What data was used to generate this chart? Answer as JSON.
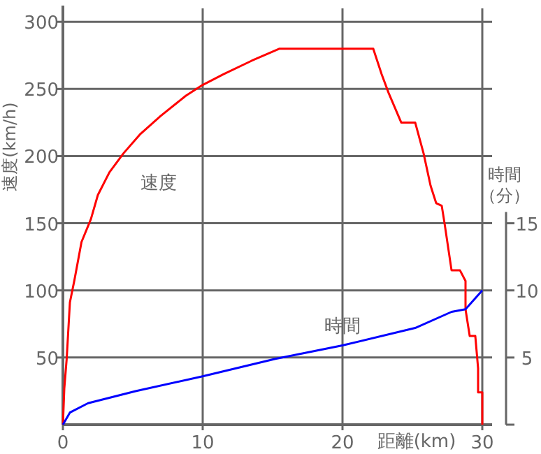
{
  "chart_data": {
    "type": "line",
    "xlabel": "距離(km)",
    "ylabel": "速度(km/h)",
    "y2label": "時間（分）",
    "xlim": [
      0,
      30.7
    ],
    "xticks": [
      0,
      10,
      20,
      30
    ],
    "ylim": [
      0,
      310
    ],
    "yticks": [
      50,
      100,
      150,
      200,
      250,
      300
    ],
    "y2lim": [
      0,
      31
    ],
    "y2ticks": [
      {
        "value": 0,
        "label": null
      },
      5,
      10,
      15
    ],
    "grid": true,
    "marker": "none",
    "line_style": "solid",
    "series": [
      {
        "name": "速度",
        "color": "#ff0000",
        "x": [
          0,
          0.1,
          0.27,
          0.5,
          0.83,
          1.33,
          2,
          2.5,
          3.33,
          4.33,
          5.5,
          7,
          8.8,
          10,
          11.5,
          13.5,
          15.5,
          22.2,
          22.8,
          23.3,
          24.2,
          25.2,
          25.8,
          26.3,
          26.7,
          27.1,
          27.3,
          27.8,
          28.4,
          28.8,
          28.8,
          29.1,
          29.5,
          29.7,
          29.7,
          30,
          30
        ],
        "values": [
          0,
          27,
          49,
          91,
          108,
          136,
          153,
          171,
          188,
          202,
          216,
          230,
          245,
          253,
          261,
          271,
          280,
          280,
          261,
          247,
          225,
          225,
          202,
          178,
          165,
          163,
          150,
          115,
          115,
          107,
          86,
          66,
          66,
          42,
          24,
          24,
          0
        ]
      },
      {
        "name": "時間",
        "color": "#0000ff",
        "axis": "y2",
        "x": [
          0,
          0.5,
          1.8,
          5.2,
          10,
          15.2,
          20,
          25.2,
          27.8,
          28.8,
          30
        ],
        "values": [
          0,
          0.9,
          1.6,
          2.5,
          3.6,
          4.9,
          5.9,
          7.2,
          8.4,
          8.6,
          10
        ]
      }
    ]
  }
}
